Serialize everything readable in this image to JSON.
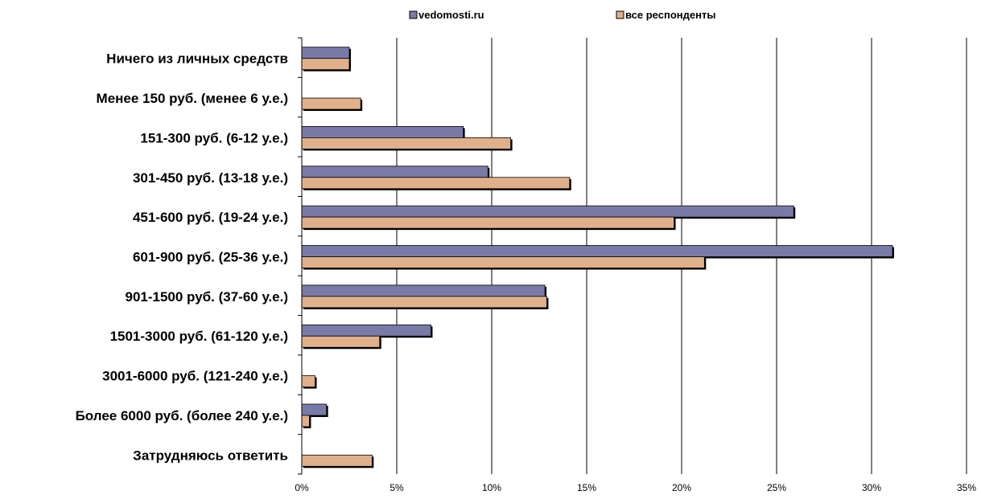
{
  "chart_data": {
    "type": "bar",
    "orientation": "horizontal",
    "categories": [
      "Ничего из личных средств",
      "Менее 150 руб. (менее 6 у.е.)",
      "151-300 руб. (6-12 у.е.)",
      "301-450 руб. (13-18 у.е.)",
      "451-600 руб. (19-24 у.е.)",
      "601-900 руб. (25-36 у.е.)",
      "901-1500 руб. (37-60 у.е.)",
      "1501-3000 руб. (61-120 у.е.)",
      "3001-6000 руб. (121-240 у.е.)",
      "Более 6000 руб. (более 240 у.е.)",
      "Затрудняюсь ответить"
    ],
    "series": [
      {
        "name": "vedomosti.ru",
        "color": "#7a7aa8",
        "values": [
          2.5,
          0,
          8.5,
          9.8,
          25.9,
          31.1,
          12.8,
          6.8,
          0,
          1.3,
          0
        ]
      },
      {
        "name": "все респонденты",
        "color": "#e0b08a",
        "values": [
          2.5,
          3.1,
          11.0,
          14.1,
          19.6,
          21.2,
          12.9,
          4.1,
          0.7,
          0.4,
          3.7
        ]
      }
    ],
    "xlim": [
      0,
      35
    ],
    "xticks": [
      0,
      5,
      10,
      15,
      20,
      25,
      30,
      35
    ],
    "xtick_labels": [
      "0%",
      "5%",
      "10%",
      "15%",
      "20%",
      "25%",
      "30%",
      "35%"
    ],
    "grid": true,
    "legend_position": "top",
    "title": "",
    "xlabel": "",
    "ylabel": ""
  }
}
